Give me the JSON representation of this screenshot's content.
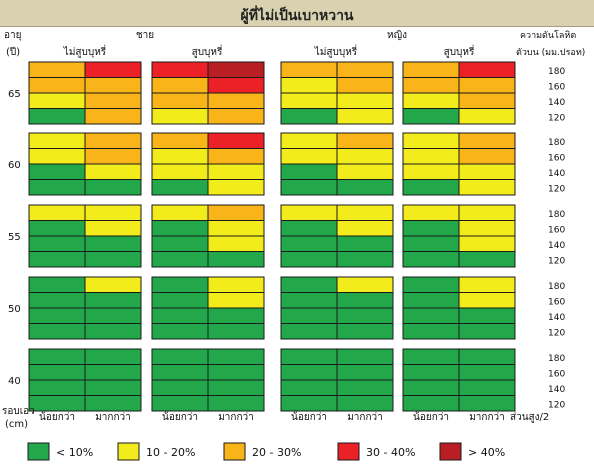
{
  "page": {
    "title": "ผู้ที่ไม่เป็นเบาหวาน"
  },
  "chart_data": {
    "type": "heatmap",
    "title": "ผู้ที่ไม่เป็นเบาหวาน",
    "headers": {
      "age_label": "อายุ",
      "age_unit": "(ปี)",
      "bp_label": "ความดันโลหิต",
      "bp_unit": "ตัวบน (มม.ปรอท)",
      "waist_label": "รอบเอว",
      "waist_unit": "(cm)",
      "height_ratio": "ส่วนสูง/2"
    },
    "sexes": [
      "ชาย",
      "หญิง"
    ],
    "smoking": [
      "ไม่สูบบุหรี่",
      "สูบบุหรี่"
    ],
    "waist_categories": [
      "น้อยกว่า",
      "มากกว่า"
    ],
    "ages": [
      "65",
      "60",
      "55",
      "50",
      "40"
    ],
    "bp_levels": [
      "180",
      "160",
      "140",
      "120"
    ],
    "legend": [
      {
        "code": 1,
        "label": "< 10%",
        "color": "#22a84a"
      },
      {
        "code": 2,
        "label": "10 - 20%",
        "color": "#f3ec1c"
      },
      {
        "code": 3,
        "label": "20 - 30%",
        "color": "#f8b418"
      },
      {
        "code": 4,
        "label": "30 - 40%",
        "color": "#ec2027"
      },
      {
        "code": 5,
        "label": "> 40%",
        "color": "#b91e24"
      }
    ],
    "blocks": [
      {
        "sex": "ชาย",
        "smoking": "ไม่สูบบุหรี่",
        "rows": [
          [
            [
              3,
              4
            ],
            [
              3,
              3
            ],
            [
              2,
              3
            ],
            [
              1,
              3
            ]
          ],
          [
            [
              2,
              3
            ],
            [
              2,
              3
            ],
            [
              1,
              2
            ],
            [
              1,
              1
            ]
          ],
          [
            [
              2,
              2
            ],
            [
              1,
              2
            ],
            [
              1,
              1
            ],
            [
              1,
              1
            ]
          ],
          [
            [
              1,
              2
            ],
            [
              1,
              1
            ],
            [
              1,
              1
            ],
            [
              1,
              1
            ]
          ],
          [
            [
              1,
              1
            ],
            [
              1,
              1
            ],
            [
              1,
              1
            ],
            [
              1,
              1
            ]
          ]
        ]
      },
      {
        "sex": "ชาย",
        "smoking": "สูบบุหรี่",
        "rows": [
          [
            [
              4,
              5
            ],
            [
              3,
              4
            ],
            [
              3,
              3
            ],
            [
              2,
              3
            ]
          ],
          [
            [
              3,
              4
            ],
            [
              2,
              3
            ],
            [
              2,
              2
            ],
            [
              1,
              2
            ]
          ],
          [
            [
              2,
              3
            ],
            [
              1,
              2
            ],
            [
              1,
              2
            ],
            [
              1,
              1
            ]
          ],
          [
            [
              1,
              2
            ],
            [
              1,
              2
            ],
            [
              1,
              1
            ],
            [
              1,
              1
            ]
          ],
          [
            [
              1,
              1
            ],
            [
              1,
              1
            ],
            [
              1,
              1
            ],
            [
              1,
              1
            ]
          ]
        ]
      },
      {
        "sex": "หญิง",
        "smoking": "ไม่สูบบุหรี่",
        "rows": [
          [
            [
              3,
              3
            ],
            [
              2,
              3
            ],
            [
              2,
              2
            ],
            [
              1,
              2
            ]
          ],
          [
            [
              2,
              3
            ],
            [
              2,
              2
            ],
            [
              1,
              2
            ],
            [
              1,
              1
            ]
          ],
          [
            [
              2,
              2
            ],
            [
              1,
              2
            ],
            [
              1,
              1
            ],
            [
              1,
              1
            ]
          ],
          [
            [
              1,
              2
            ],
            [
              1,
              1
            ],
            [
              1,
              1
            ],
            [
              1,
              1
            ]
          ],
          [
            [
              1,
              1
            ],
            [
              1,
              1
            ],
            [
              1,
              1
            ],
            [
              1,
              1
            ]
          ]
        ]
      },
      {
        "sex": "หญิง",
        "smoking": "สูบบุหรี่",
        "rows": [
          [
            [
              3,
              4
            ],
            [
              3,
              3
            ],
            [
              2,
              3
            ],
            [
              1,
              2
            ]
          ],
          [
            [
              2,
              3
            ],
            [
              2,
              3
            ],
            [
              2,
              2
            ],
            [
              1,
              2
            ]
          ],
          [
            [
              2,
              2
            ],
            [
              1,
              2
            ],
            [
              1,
              2
            ],
            [
              1,
              1
            ]
          ],
          [
            [
              1,
              2
            ],
            [
              1,
              2
            ],
            [
              1,
              1
            ],
            [
              1,
              1
            ]
          ],
          [
            [
              1,
              1
            ],
            [
              1,
              1
            ],
            [
              1,
              1
            ],
            [
              1,
              1
            ]
          ]
        ]
      }
    ]
  }
}
